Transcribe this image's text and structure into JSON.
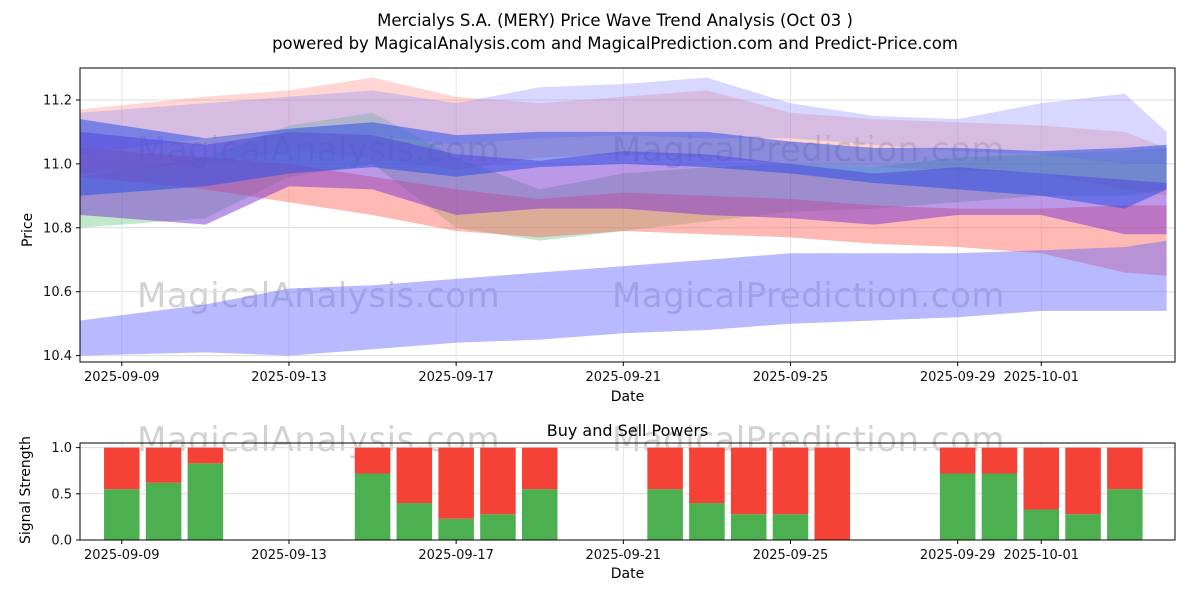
{
  "header": {
    "title_line1": "Mercialys S.A. (MERY) Price Wave Trend Analysis (Oct 03 )",
    "title_line2": "powered by MagicalAnalysis.com and MagicalPrediction.com and Predict-Price.com"
  },
  "watermarks": {
    "left": "MagicalAnalysis.com",
    "right": "MagicalPrediction.com"
  },
  "chart_data": [
    {
      "type": "area",
      "title": "",
      "xlabel": "Date",
      "ylabel": "Price",
      "ylim": [
        10.38,
        11.3
      ],
      "yticks": [
        10.4,
        10.6,
        10.8,
        11.0,
        11.2
      ],
      "epoch": "2025-09-09",
      "xlim_days": [
        -1,
        25.2
      ],
      "xticks": [
        "2025-09-09",
        "2025-09-13",
        "2025-09-17",
        "2025-09-21",
        "2025-09-25",
        "2025-09-29",
        "2025-10-01"
      ],
      "grid": true,
      "legend": "none",
      "x_dates": [
        "2025-09-08",
        "2025-09-11",
        "2025-09-13",
        "2025-09-15",
        "2025-09-17",
        "2025-09-19",
        "2025-09-21",
        "2025-09-23",
        "2025-09-25",
        "2025-09-27",
        "2025-09-29",
        "2025-10-01",
        "2025-10-03",
        "2025-10-04"
      ],
      "bands": [
        {
          "name": "pale-red-upper-band",
          "color": "rgba(255,120,110,0.30)",
          "lower": [
            10.97,
            11.0,
            11.04,
            11.02,
            10.98,
            11.02,
            11.03,
            11.02,
            11.0,
            10.99,
            10.98,
            10.97,
            10.92,
            10.9
          ],
          "upper": [
            11.17,
            11.21,
            11.23,
            11.27,
            11.21,
            11.19,
            11.21,
            11.23,
            11.16,
            11.14,
            11.13,
            11.12,
            11.1,
            11.05
          ]
        },
        {
          "name": "green-band",
          "color": "rgba(80,190,110,0.35)",
          "lower": [
            10.8,
            10.83,
            10.96,
            11.0,
            10.8,
            10.76,
            10.79,
            10.82,
            10.85,
            10.86,
            10.88,
            10.9,
            10.9,
            10.92
          ],
          "upper": [
            10.96,
            11.02,
            11.12,
            11.16,
            11.02,
            10.92,
            10.97,
            10.99,
            11.0,
            10.99,
            11.02,
            11.03,
            11.04,
            11.05
          ]
        },
        {
          "name": "lavender-upper-band",
          "color": "rgba(140,140,255,0.35)",
          "lower": [
            11.03,
            11.08,
            11.1,
            11.09,
            11.06,
            11.08,
            11.09,
            11.08,
            11.08,
            11.06,
            11.04,
            11.03,
            11.0,
            11.0
          ],
          "upper": [
            11.16,
            11.19,
            11.21,
            11.23,
            11.19,
            11.24,
            11.25,
            11.27,
            11.19,
            11.15,
            11.14,
            11.19,
            11.22,
            11.1
          ]
        },
        {
          "name": "salmon-lower-band",
          "color": "rgba(255,100,90,0.45)",
          "lower": [
            10.96,
            10.92,
            10.88,
            10.84,
            10.79,
            10.77,
            10.79,
            10.78,
            10.77,
            10.75,
            10.74,
            10.72,
            10.66,
            10.65
          ],
          "upper": [
            11.05,
            11.02,
            11.0,
            10.96,
            10.92,
            10.89,
            10.91,
            10.9,
            10.89,
            10.87,
            10.86,
            10.86,
            10.87,
            10.87
          ]
        },
        {
          "name": "purple-band",
          "color": "rgba(120,50,210,0.50)",
          "lower": [
            10.84,
            10.81,
            10.93,
            10.92,
            10.84,
            10.86,
            10.86,
            10.84,
            10.83,
            10.81,
            10.84,
            10.84,
            10.78,
            10.78
          ],
          "upper": [
            11.1,
            11.06,
            11.1,
            11.09,
            11.03,
            11.01,
            11.04,
            11.03,
            11.0,
            10.97,
            10.99,
            10.97,
            10.95,
            10.94
          ]
        },
        {
          "name": "royal-blue-band",
          "color": "rgba(45,80,230,0.55)",
          "lower": [
            10.9,
            10.93,
            10.97,
            10.99,
            10.96,
            10.99,
            11.0,
            10.99,
            10.97,
            10.94,
            10.92,
            10.9,
            10.86,
            10.92
          ],
          "upper": [
            11.14,
            11.08,
            11.11,
            11.13,
            11.09,
            11.1,
            11.1,
            11.1,
            11.07,
            11.05,
            11.05,
            11.04,
            11.05,
            11.06
          ]
        },
        {
          "name": "wide-periwinkle-lower-band",
          "color": "rgba(100,100,255,0.45)",
          "lower": [
            10.4,
            10.41,
            10.4,
            10.42,
            10.44,
            10.45,
            10.47,
            10.48,
            10.5,
            10.51,
            10.52,
            10.54,
            10.54,
            10.54
          ],
          "upper": [
            10.51,
            10.56,
            10.61,
            10.62,
            10.64,
            10.66,
            10.68,
            10.7,
            10.72,
            10.72,
            10.72,
            10.73,
            10.74,
            10.76
          ]
        }
      ]
    },
    {
      "type": "bar",
      "title": "Buy and Sell Powers",
      "xlabel": "Date",
      "ylabel": "Signal Strength",
      "ylim": [
        0,
        1.05
      ],
      "yticks": [
        0.0,
        0.5,
        1.0
      ],
      "epoch": "2025-09-09",
      "xlim_days": [
        -1,
        25.2
      ],
      "xticks": [
        "2025-09-09",
        "2025-09-13",
        "2025-09-17",
        "2025-09-21",
        "2025-09-25",
        "2025-09-29",
        "2025-10-01"
      ],
      "colors": {
        "buy": "#4caf50",
        "sell": "#f44336"
      },
      "bars": [
        {
          "date": "2025-09-09",
          "buy": 0.55,
          "sell": 0.45
        },
        {
          "date": "2025-09-10",
          "buy": 0.62,
          "sell": 0.38
        },
        {
          "date": "2025-09-11",
          "buy": 0.83,
          "sell": 0.17
        },
        {
          "date": "2025-09-15",
          "buy": 0.72,
          "sell": 0.28
        },
        {
          "date": "2025-09-16",
          "buy": 0.4,
          "sell": 0.6
        },
        {
          "date": "2025-09-17",
          "buy": 0.23,
          "sell": 0.77
        },
        {
          "date": "2025-09-18",
          "buy": 0.28,
          "sell": 0.72
        },
        {
          "date": "2025-09-19",
          "buy": 0.55,
          "sell": 0.45
        },
        {
          "date": "2025-09-22",
          "buy": 0.55,
          "sell": 0.45
        },
        {
          "date": "2025-09-23",
          "buy": 0.4,
          "sell": 0.6
        },
        {
          "date": "2025-09-24",
          "buy": 0.28,
          "sell": 0.72
        },
        {
          "date": "2025-09-25",
          "buy": 0.28,
          "sell": 0.72
        },
        {
          "date": "2025-09-26",
          "buy": 0.0,
          "sell": 1.0
        },
        {
          "date": "2025-09-29",
          "buy": 0.72,
          "sell": 0.28
        },
        {
          "date": "2025-09-30",
          "buy": 0.72,
          "sell": 0.28
        },
        {
          "date": "2025-10-01",
          "buy": 0.33,
          "sell": 0.67
        },
        {
          "date": "2025-10-02",
          "buy": 0.28,
          "sell": 0.72
        },
        {
          "date": "2025-10-03",
          "buy": 0.55,
          "sell": 0.45
        }
      ]
    }
  ]
}
